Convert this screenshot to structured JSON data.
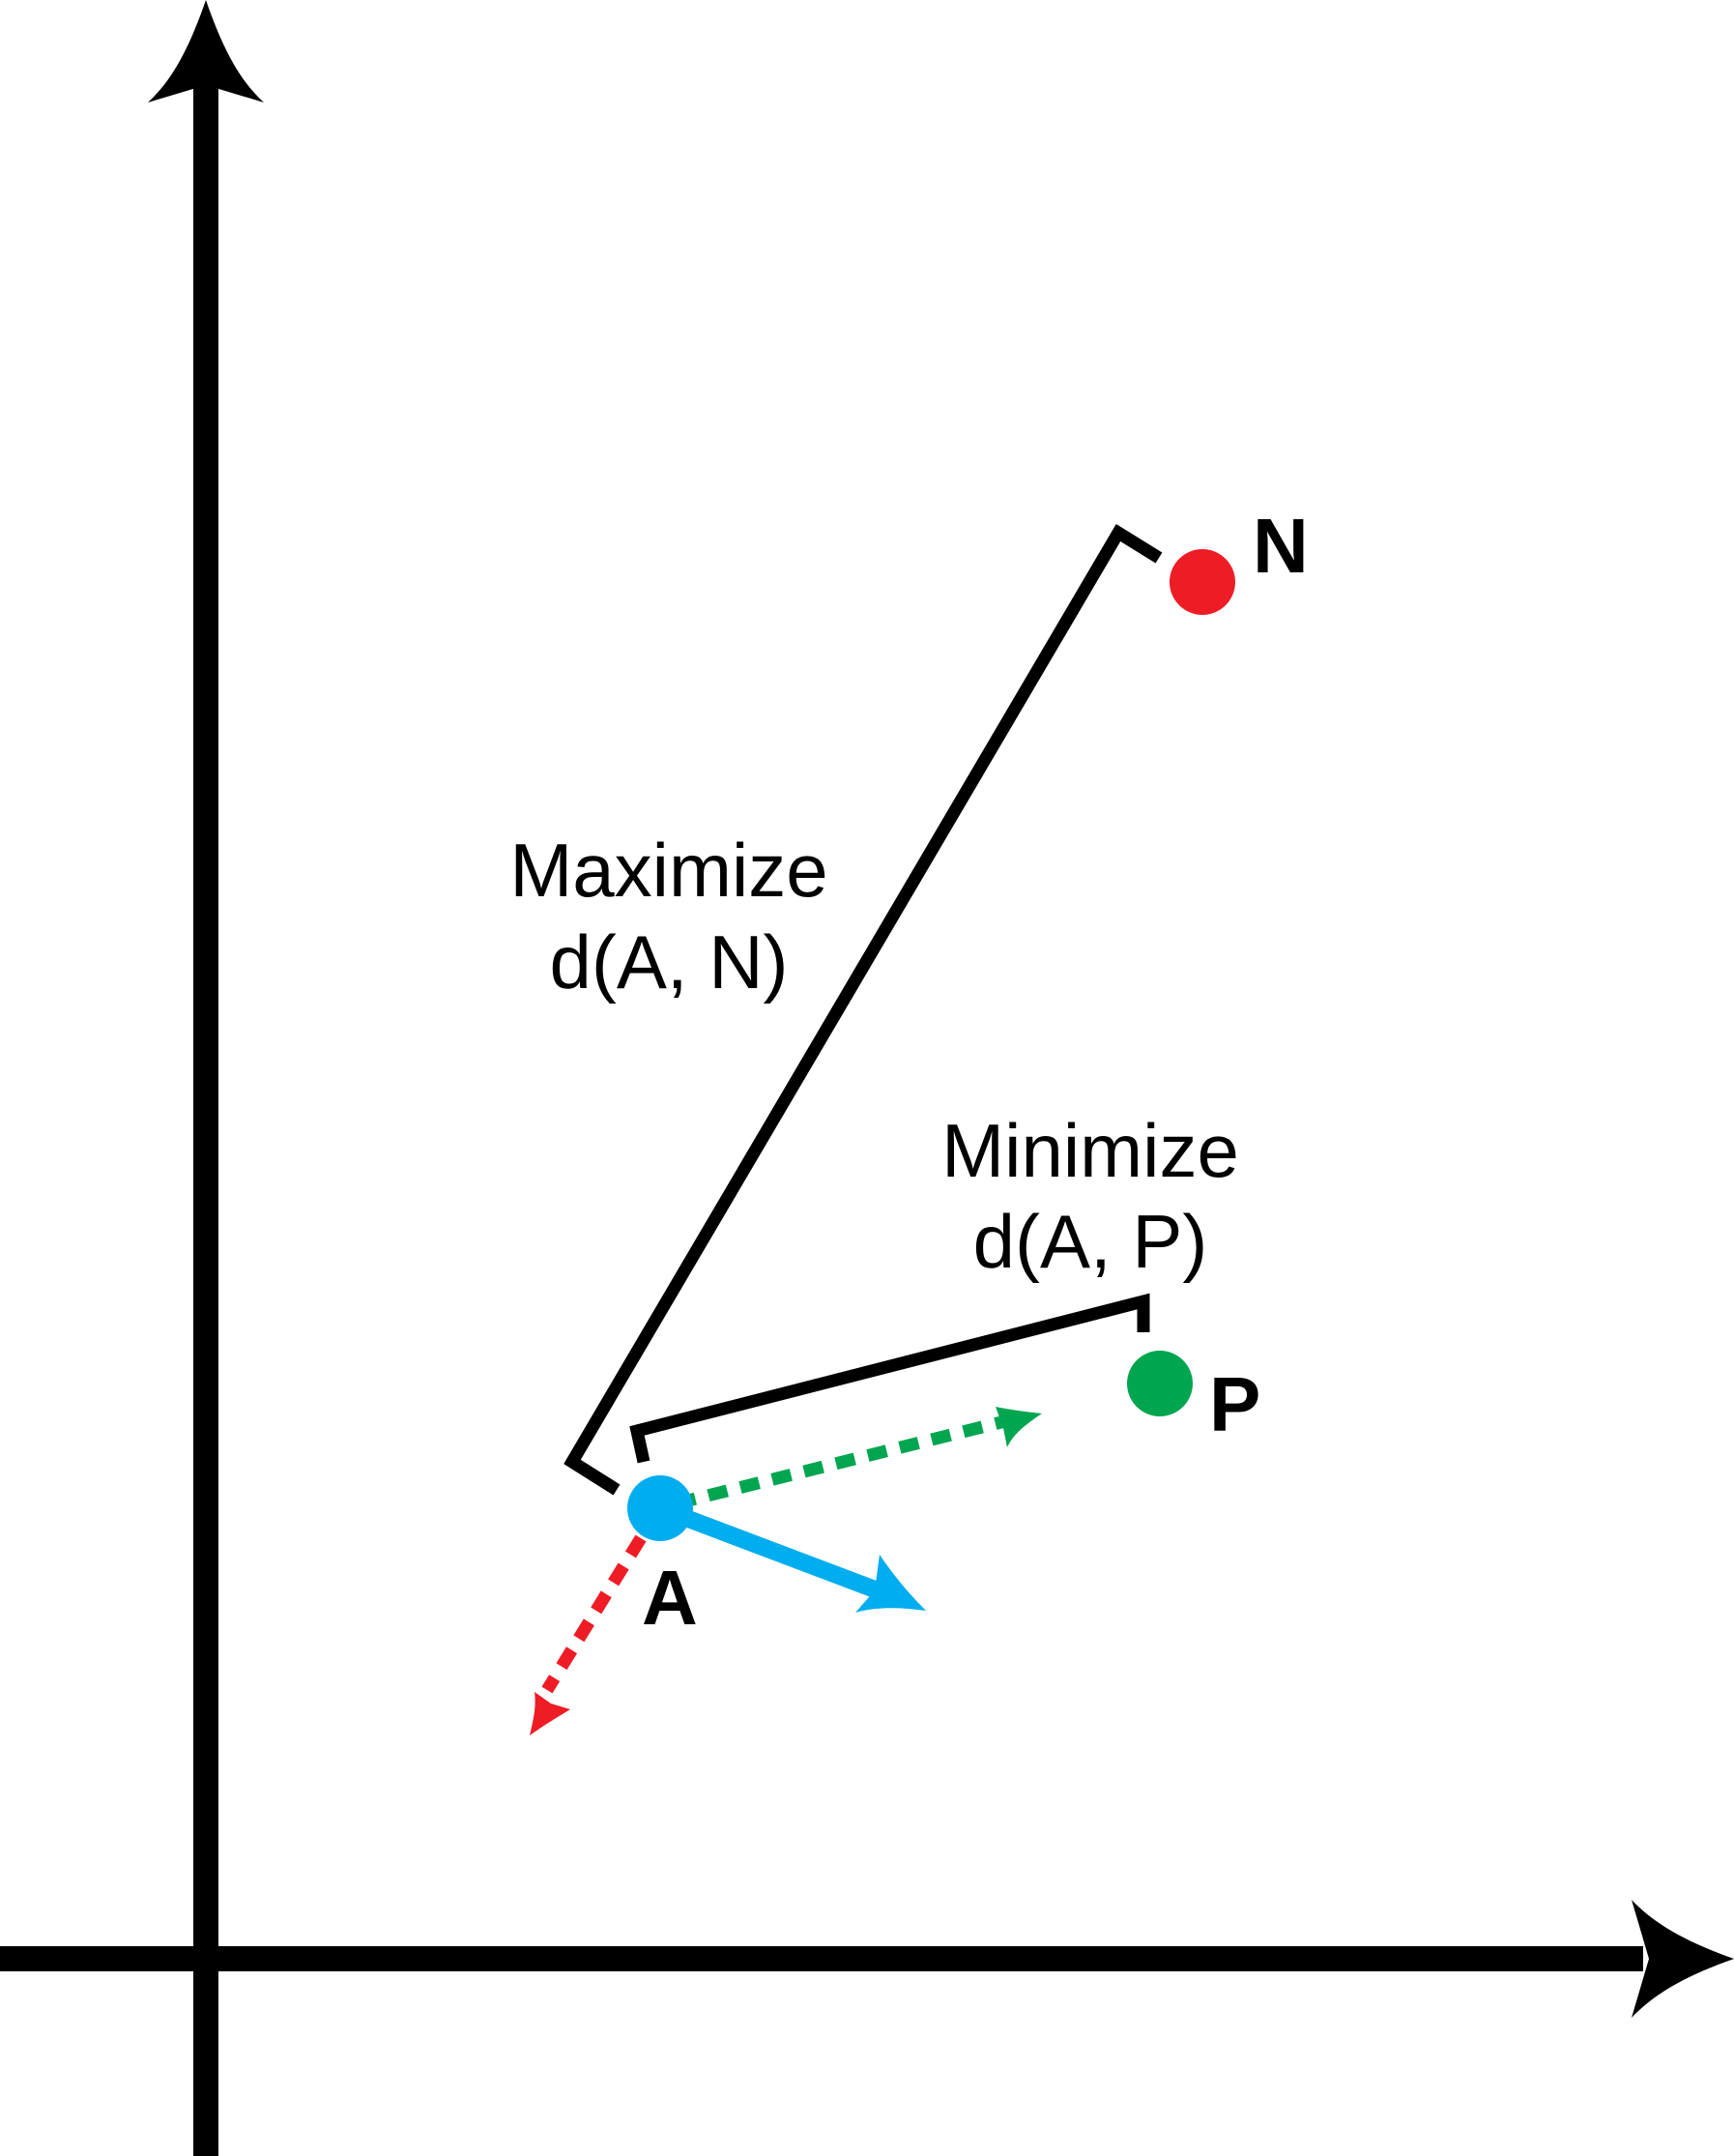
{
  "points": {
    "anchor": {
      "label": "A",
      "color": "#00adef"
    },
    "positive": {
      "label": "P",
      "color": "#00a550"
    },
    "negative": {
      "label": "N",
      "color": "#ee1c25"
    }
  },
  "captions": {
    "maximize_line1": "Maximize",
    "maximize_line2": "d(A, N)",
    "minimize_line1": "Minimize",
    "minimize_line2": "d(A, P)"
  },
  "colors": {
    "axes": "#000000",
    "bracket": "#000000",
    "anchor_arrow": "#00adef",
    "positive_arrow": "#00a550",
    "negative_arrow": "#ee1c25"
  }
}
